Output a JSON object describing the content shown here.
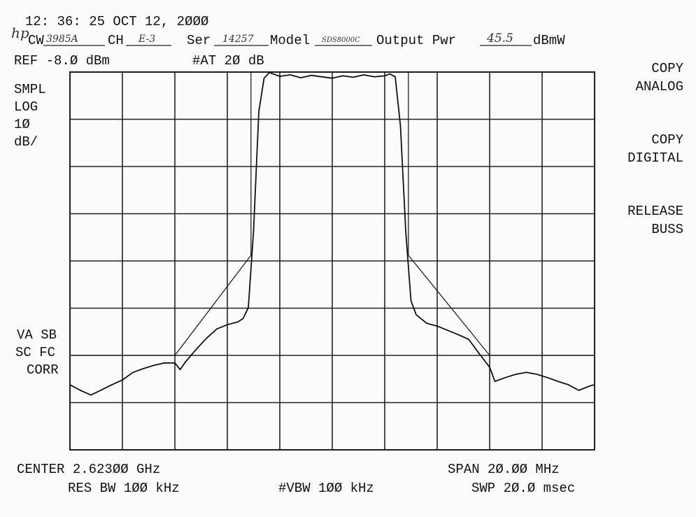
{
  "chart_data": {
    "type": "line",
    "header": {
      "logo": "hp",
      "timestamp": "12: 36: 25 OCT 12, 2ØØØ",
      "cw_label": "CW",
      "cw_value": "3985A",
      "ch_label": "CH",
      "ch_value": "E-3",
      "ser_label": "Ser",
      "ser_value": "14257",
      "model_label": "Model",
      "model_value": "SDS8000C",
      "output_label": "Output Pwr",
      "output_value": "45.5",
      "output_unit": "dBmW",
      "ref": "REF -8.Ø dBm",
      "atten": "#AT 2Ø dB"
    },
    "left_labels": [
      "SMPL",
      "LOG",
      "1Ø",
      "dB/"
    ],
    "left_lower_labels": [
      "VA SB",
      "SC FC",
      "CORR"
    ],
    "softkeys": [
      [
        "COPY",
        "ANALOG"
      ],
      [
        "COPY",
        "DIGITAL"
      ],
      [
        "RELEASE",
        "BUSS"
      ]
    ],
    "footer": {
      "center": "CENTER 2.623ØØ GHz",
      "span": "SPAN 2Ø.ØØ MHz",
      "rbw": "RES BW 1ØØ kHz",
      "vbw": "#VBW 1ØØ kHz",
      "sweep": "SWP 2Ø.Ø msec"
    },
    "xlim": [
      2613,
      2633
    ],
    "ylim": [
      -88,
      -8
    ],
    "xticks": [
      2613,
      2615,
      2617,
      2619,
      2621,
      2623,
      2625,
      2627,
      2629,
      2631,
      2633
    ],
    "yticks": [
      -88,
      -78,
      -68,
      -58,
      -48,
      -38,
      -28,
      -18,
      -8
    ],
    "grid": true,
    "series": [
      {
        "color": "#111",
        "x": [
          2613.0,
          2613.4,
          2613.8,
          2614.2,
          2614.6,
          2615.0,
          2615.4,
          2615.8,
          2616.2,
          2616.6,
          2617.0,
          2617.2,
          2617.4,
          2617.8,
          2618.2,
          2618.6,
          2619.0,
          2619.4,
          2619.6,
          2619.8,
          2620.0,
          2620.2,
          2620.4,
          2620.6,
          2621.0,
          2621.4,
          2621.8,
          2622.2,
          2622.6,
          2623.0,
          2623.4,
          2623.8,
          2624.2,
          2624.6,
          2625.0,
          2625.2,
          2625.4,
          2625.6,
          2625.8,
          2626.0,
          2626.2,
          2626.6,
          2627.0,
          2627.4,
          2627.8,
          2628.2,
          2628.6,
          2629.0,
          2629.2,
          2629.6,
          2630.0,
          2630.4,
          2630.8,
          2631.2,
          2631.6,
          2632.0,
          2632.4,
          2632.8,
          2633.0
        ],
        "values": [
          -74.2,
          -75.4,
          -76.4,
          -75.3,
          -74.2,
          -73.2,
          -71.6,
          -70.8,
          -70.1,
          -69.6,
          -69.6,
          -71.0,
          -69.4,
          -66.8,
          -64.4,
          -62.4,
          -61.5,
          -60.9,
          -60.2,
          -57.9,
          -41.6,
          -16.4,
          -9.3,
          -8.1,
          -8.9,
          -8.6,
          -9.2,
          -8.7,
          -9.0,
          -9.3,
          -8.8,
          -9.1,
          -8.6,
          -9.0,
          -8.8,
          -8.4,
          -9.0,
          -19.4,
          -41.6,
          -56.4,
          -59.4,
          -61.2,
          -61.8,
          -62.7,
          -63.6,
          -64.6,
          -67.6,
          -70.5,
          -73.5,
          -72.7,
          -72.0,
          -71.6,
          -72.0,
          -72.7,
          -73.5,
          -74.2,
          -75.4,
          -74.5,
          -74.2
        ]
      },
      {
        "color": "#222",
        "x": [
          2613,
          2617,
          2619.9,
          2619.9,
          2622.9,
          2625.9,
          2625.9,
          2629,
          2633
        ],
        "values": [
          -68,
          -68,
          -46.8,
          -8,
          null,
          -8,
          -46.8,
          -68,
          -68
        ]
      }
    ]
  }
}
